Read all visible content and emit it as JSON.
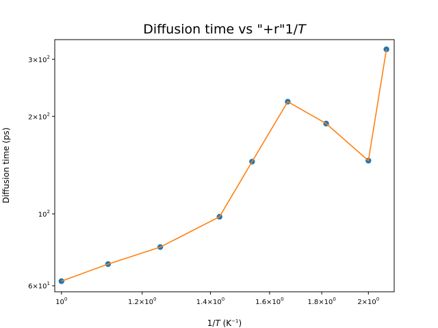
{
  "chart_data": {
    "type": "line",
    "title_main": "Diffusion time vs \"+r\"1/",
    "title_var": "T",
    "xlabel": {
      "prefix": "1/",
      "var": "T",
      "unit_open": " (K",
      "unit_sup": "−1",
      "unit_close": ")"
    },
    "ylabel": "Diffusion time (ps)",
    "x_scale": "log",
    "y_scale": "log",
    "xlim": [
      0.985,
      2.12
    ],
    "ylim": [
      57.5,
      345
    ],
    "grid": false,
    "x": [
      1.0,
      1.111,
      1.25,
      1.429,
      1.538,
      1.667,
      1.818,
      2.0,
      2.083
    ],
    "y": [
      62,
      70,
      79,
      98,
      145,
      222,
      190,
      146,
      322
    ],
    "x_ticks": [
      {
        "value": 1.0,
        "mant": "10",
        "sup": "0"
      },
      {
        "value": 1.2,
        "mant": "1.2×10",
        "sup": "0"
      },
      {
        "value": 1.4,
        "mant": "1.4×10",
        "sup": "0"
      },
      {
        "value": 1.6,
        "mant": "1.6×10",
        "sup": "0"
      },
      {
        "value": 1.8,
        "mant": "1.8×10",
        "sup": "0"
      },
      {
        "value": 2.0,
        "mant": "2×10",
        "sup": "0"
      }
    ],
    "y_ticks": [
      {
        "value": 60,
        "mant": "6×10",
        "sup": "1"
      },
      {
        "value": 100,
        "mant": "10",
        "sup": "2"
      },
      {
        "value": 200,
        "mant": "2×10",
        "sup": "2"
      },
      {
        "value": 300,
        "mant": "3×10",
        "sup": "2"
      }
    ],
    "marker_color": "#1f77b4",
    "line_color": "#ff7f0e"
  }
}
